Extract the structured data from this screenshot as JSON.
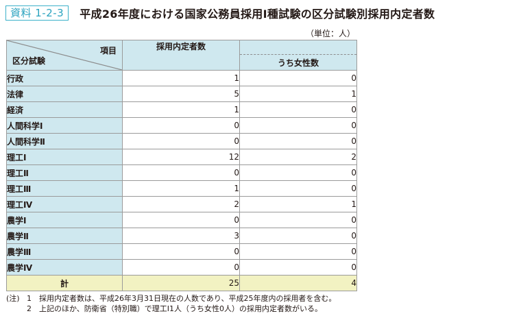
{
  "header": {
    "tag": "資料 1-2-3",
    "title": "平成26年度における国家公務員採用Ⅰ種試験の区分試験別採用内定者数"
  },
  "unit": "（単位：人）",
  "table": {
    "corner_item": "項目",
    "corner_category": "区分試験",
    "col_main": "採用内定者数",
    "col_sub": "うち女性数",
    "rows": [
      {
        "label": "行政",
        "total": "1",
        "female": "0"
      },
      {
        "label": "法律",
        "total": "5",
        "female": "1"
      },
      {
        "label": "経済",
        "total": "1",
        "female": "0"
      },
      {
        "label": "人間科学Ⅰ",
        "total": "0",
        "female": "0"
      },
      {
        "label": "人間科学Ⅱ",
        "total": "0",
        "female": "0"
      },
      {
        "label": "理工Ⅰ",
        "total": "12",
        "female": "2"
      },
      {
        "label": "理工Ⅱ",
        "total": "0",
        "female": "0"
      },
      {
        "label": "理工Ⅲ",
        "total": "1",
        "female": "0"
      },
      {
        "label": "理工Ⅳ",
        "total": "2",
        "female": "1"
      },
      {
        "label": "農学Ⅰ",
        "total": "0",
        "female": "0"
      },
      {
        "label": "農学Ⅱ",
        "total": "3",
        "female": "0"
      },
      {
        "label": "農学Ⅲ",
        "total": "0",
        "female": "0"
      },
      {
        "label": "農学Ⅳ",
        "total": "0",
        "female": "0"
      }
    ],
    "total_row": {
      "label": "計",
      "total": "25",
      "female": "4"
    }
  },
  "notes": {
    "mark": "(注)",
    "items": [
      {
        "num": "1",
        "text": "採用内定者数は、平成26年3月31日現在の人数であり、平成25年度内の採用者を含む。"
      },
      {
        "num": "2",
        "text": "上記のほか、防衛省（特別職）で理工Ⅰ1人（うち女性0人）の採用内定者数がいる。"
      }
    ]
  }
}
